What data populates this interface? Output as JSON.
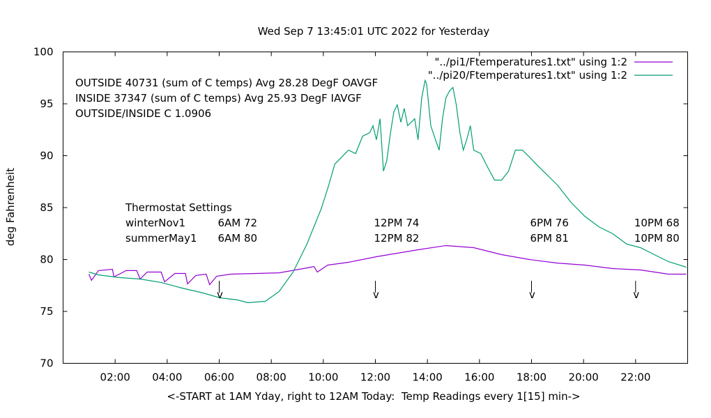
{
  "chart_data": {
    "type": "line",
    "title": "Wed Sep  7 13:45:01 UTC 2022 for Yesterday",
    "xlabel": "<-START at 1AM Yday, right to 12AM Today:  Temp Readings every 1[15] min->",
    "ylabel": "deg Fahrenheit",
    "xlim": [
      0,
      24
    ],
    "ylim": [
      70,
      100
    ],
    "xticks": [
      {
        "v": 2,
        "label": "02:00"
      },
      {
        "v": 4,
        "label": "04:00"
      },
      {
        "v": 6,
        "label": "06:00"
      },
      {
        "v": 8,
        "label": "08:00"
      },
      {
        "v": 10,
        "label": "10:00"
      },
      {
        "v": 12,
        "label": "12:00"
      },
      {
        "v": 14,
        "label": "14:00"
      },
      {
        "v": 16,
        "label": "16:00"
      },
      {
        "v": 18,
        "label": "18:00"
      },
      {
        "v": 20,
        "label": "20:00"
      },
      {
        "v": 22,
        "label": "22:00"
      }
    ],
    "yticks": [
      {
        "v": 70,
        "label": "70"
      },
      {
        "v": 75,
        "label": "75"
      },
      {
        "v": 80,
        "label": "80"
      },
      {
        "v": 85,
        "label": "85"
      },
      {
        "v": 90,
        "label": "90"
      },
      {
        "v": 95,
        "label": "95"
      },
      {
        "v": 100,
        "label": "100"
      }
    ],
    "grid": false,
    "legend_position": "top-right",
    "series": [
      {
        "name": "\"../pi1/Ftemperatures1.txt\" using 1:2",
        "color": "#9400d3",
        "x": [
          0.99,
          1.09,
          1.36,
          1.9,
          1.95,
          2.43,
          2.83,
          2.96,
          3.23,
          3.77,
          3.9,
          4.3,
          4.7,
          4.78,
          5.1,
          5.5,
          5.63,
          5.9,
          6.44,
          8.3,
          9.37,
          9.64,
          9.77,
          10.17,
          10.97,
          12.04,
          13.64,
          14.71,
          15.78,
          16.85,
          17.92,
          18.99,
          20.05,
          21.12,
          22.19,
          23.26,
          23.95
        ],
        "y": [
          78.59,
          77.99,
          78.93,
          79.06,
          78.32,
          78.93,
          78.93,
          78.12,
          78.79,
          78.79,
          77.85,
          78.66,
          78.66,
          77.65,
          78.46,
          78.59,
          77.58,
          78.39,
          78.59,
          78.72,
          79.19,
          79.33,
          78.79,
          79.46,
          79.73,
          80.27,
          80.94,
          81.34,
          81.14,
          80.47,
          80.0,
          79.66,
          79.46,
          79.13,
          78.99,
          78.59,
          78.59
        ]
      },
      {
        "name": "\"../pi20/Ftemperatures1.txt\" using 1:2",
        "color": "#009e73",
        "x": [
          0.99,
          1.36,
          2.16,
          2.96,
          3.76,
          4.57,
          5.37,
          6.03,
          6.7,
          7.1,
          7.77,
          8.3,
          8.84,
          9.37,
          9.91,
          10.17,
          10.44,
          10.71,
          10.97,
          11.24,
          11.51,
          11.78,
          11.91,
          12.04,
          12.18,
          12.31,
          12.44,
          12.58,
          12.71,
          12.84,
          12.98,
          13.11,
          13.24,
          13.51,
          13.64,
          13.78,
          13.91,
          13.97,
          14.13,
          14.31,
          14.45,
          14.58,
          14.71,
          14.85,
          14.98,
          15.11,
          15.25,
          15.38,
          15.51,
          15.65,
          15.78,
          16.05,
          16.32,
          16.58,
          16.85,
          17.12,
          17.38,
          17.65,
          17.92,
          18.18,
          18.45,
          18.72,
          18.99,
          19.52,
          20.05,
          20.59,
          21.12,
          21.66,
          22.19,
          22.72,
          23.26,
          23.95
        ],
        "y": [
          78.79,
          78.52,
          78.26,
          78.12,
          77.79,
          77.25,
          76.78,
          76.31,
          76.11,
          75.84,
          75.97,
          76.91,
          78.79,
          81.48,
          84.83,
          86.85,
          89.19,
          89.87,
          90.54,
          90.2,
          91.88,
          92.21,
          92.89,
          91.54,
          93.56,
          88.52,
          89.53,
          92.21,
          94.23,
          94.9,
          93.22,
          94.56,
          92.89,
          93.56,
          91.54,
          95.57,
          97.25,
          96.91,
          92.89,
          91.54,
          90.54,
          93.56,
          95.57,
          96.24,
          96.58,
          94.9,
          92.21,
          90.54,
          91.54,
          92.89,
          90.54,
          90.2,
          88.86,
          87.65,
          87.65,
          88.52,
          90.54,
          90.54,
          89.87,
          89.19,
          88.52,
          87.85,
          87.18,
          85.5,
          84.16,
          83.15,
          82.48,
          81.48,
          81.14,
          80.47,
          79.8,
          79.26
        ]
      }
    ],
    "annotations": {
      "stats": [
        "OUTSIDE 40731 (sum of C temps) Avg 28.28 DegF OAVGF",
        "INSIDE 37347 (sum of C temps) Avg 25.93 DegF IAVGF",
        "OUTSIDE/INSIDE C 1.0906"
      ],
      "thermostat_title": "Thermostat Settings",
      "winter_label": "winterNov1",
      "summer_label": "summerMay1",
      "settings": [
        {
          "hour": 6,
          "winter": "6AM 72",
          "summer": "6AM 80"
        },
        {
          "hour": 12,
          "winter": "12PM 74",
          "summer": "12PM 82"
        },
        {
          "hour": 18,
          "winter": "6PM 76",
          "summer": "6PM 81"
        },
        {
          "hour": 22,
          "winter": "10PM 68",
          "summer": "10PM 80"
        }
      ],
      "arrow_glyph": "v"
    }
  }
}
